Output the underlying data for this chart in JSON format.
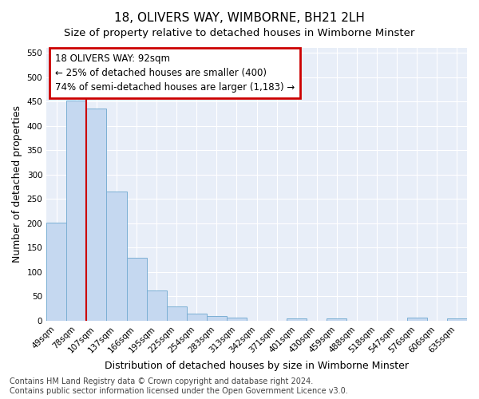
{
  "title": "18, OLIVERS WAY, WIMBORNE, BH21 2LH",
  "subtitle": "Size of property relative to detached houses in Wimborne Minster",
  "xlabel": "Distribution of detached houses by size in Wimborne Minster",
  "ylabel": "Number of detached properties",
  "categories": [
    "49sqm",
    "78sqm",
    "107sqm",
    "137sqm",
    "166sqm",
    "195sqm",
    "225sqm",
    "254sqm",
    "283sqm",
    "313sqm",
    "342sqm",
    "371sqm",
    "401sqm",
    "430sqm",
    "459sqm",
    "488sqm",
    "518sqm",
    "547sqm",
    "576sqm",
    "606sqm",
    "635sqm"
  ],
  "values": [
    202,
    452,
    435,
    265,
    130,
    62,
    30,
    15,
    10,
    7,
    0,
    0,
    5,
    0,
    5,
    0,
    0,
    0,
    7,
    0,
    5
  ],
  "bar_color": "#c5d8f0",
  "bar_edge_color": "#7bafd4",
  "vline_color": "#cc0000",
  "annotation_box_color": "#cc0000",
  "annotation_text_line1": "18 OLIVERS WAY: 92sqm",
  "annotation_text_line2": "← 25% of detached houses are smaller (400)",
  "annotation_text_line3": "74% of semi-detached houses are larger (1,183) →",
  "ylim": [
    0,
    560
  ],
  "yticks": [
    0,
    50,
    100,
    150,
    200,
    250,
    300,
    350,
    400,
    450,
    500,
    550
  ],
  "footer_line1": "Contains HM Land Registry data © Crown copyright and database right 2024.",
  "footer_line2": "Contains public sector information licensed under the Open Government Licence v3.0.",
  "bg_color": "#e8eef8",
  "grid_color": "#ffffff",
  "fig_color": "#ffffff",
  "title_fontsize": 11,
  "subtitle_fontsize": 9.5,
  "label_fontsize": 9,
  "tick_fontsize": 7.5,
  "footer_fontsize": 7,
  "ann_fontsize": 8.5
}
